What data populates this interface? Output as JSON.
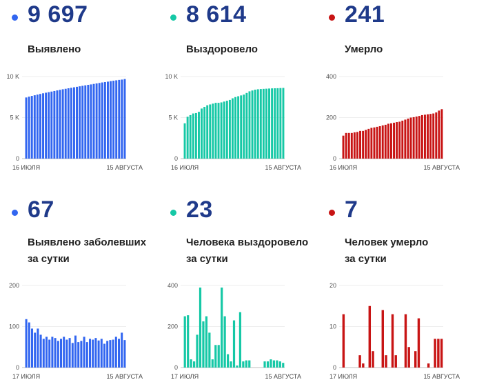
{
  "panels": [
    {
      "value": "9 697",
      "label_lines": [
        "Выявлено"
      ],
      "color": "#3266f0"
    },
    {
      "value": "8 614",
      "label_lines": [
        "Выздоровело"
      ],
      "color": "#16c8a6"
    },
    {
      "value": "241",
      "label_lines": [
        "Умерло"
      ],
      "color": "#c81414"
    },
    {
      "value": "67",
      "label_lines": [
        "Выявлено заболевших",
        "за сутки"
      ],
      "color": "#3266f0"
    },
    {
      "value": "23",
      "label_lines": [
        "Человека выздоровело",
        "за сутки"
      ],
      "color": "#16c8a6"
    },
    {
      "value": "7",
      "label_lines": [
        "Человек умерло",
        "за сутки"
      ],
      "color": "#c81414"
    }
  ],
  "chart_data": [
    {
      "type": "bar",
      "color": "#3266f0",
      "ylim": [
        0,
        10000
      ],
      "yticks": [
        {
          "v": 0,
          "label": "0"
        },
        {
          "v": 5000,
          "label": "5 K"
        },
        {
          "v": 10000,
          "label": "10 K"
        }
      ],
      "x_start_label": "16 ИЮЛЯ",
      "x_end_label": "15 АВГУСТА",
      "values": [
        7450,
        7550,
        7640,
        7720,
        7800,
        7880,
        7960,
        8030,
        8100,
        8170,
        8240,
        8310,
        8380,
        8450,
        8510,
        8570,
        8630,
        8690,
        8750,
        8810,
        8870,
        8930,
        8990,
        9040,
        9100,
        9160,
        9220,
        9280,
        9330,
        9380,
        9440,
        9490,
        9540,
        9590,
        9630,
        9697
      ]
    },
    {
      "type": "bar",
      "color": "#16c8a6",
      "ylim": [
        0,
        10000
      ],
      "yticks": [
        {
          "v": 0,
          "label": "0"
        },
        {
          "v": 5000,
          "label": "5 K"
        },
        {
          "v": 10000,
          "label": "10 K"
        }
      ],
      "x_start_label": "16 ИЮЛЯ",
      "x_end_label": "15 АВГУСТА",
      "values": [
        4300,
        5100,
        5300,
        5500,
        5550,
        5700,
        6100,
        6300,
        6500,
        6600,
        6700,
        6800,
        6800,
        6850,
        6950,
        7050,
        7150,
        7350,
        7500,
        7600,
        7700,
        7800,
        8000,
        8200,
        8300,
        8400,
        8450,
        8480,
        8500,
        8520,
        8540,
        8560,
        8570,
        8580,
        8600,
        8614
      ]
    },
    {
      "type": "bar",
      "color": "#c81414",
      "ylim": [
        0,
        400
      ],
      "yticks": [
        {
          "v": 0,
          "label": "0"
        },
        {
          "v": 200,
          "label": "200"
        },
        {
          "v": 400,
          "label": "400"
        }
      ],
      "x_start_label": "16 ИЮЛЯ",
      "x_end_label": "15 АВГУСТА",
      "values": [
        112,
        125,
        125,
        125,
        128,
        130,
        135,
        135,
        140,
        145,
        150,
        152,
        155,
        158,
        162,
        165,
        170,
        172,
        175,
        178,
        180,
        185,
        190,
        195,
        200,
        202,
        205,
        208,
        212,
        214,
        216,
        218,
        220,
        225,
        234,
        241
      ]
    },
    {
      "type": "bar",
      "color": "#3266f0",
      "ylim": [
        0,
        200
      ],
      "yticks": [
        {
          "v": 0,
          "label": "0"
        },
        {
          "v": 100,
          "label": "100"
        },
        {
          "v": 200,
          "label": "200"
        }
      ],
      "x_start_label": "17 ИЮЛЯ",
      "x_end_label": "15 АВГУСТА",
      "values": [
        118,
        110,
        95,
        85,
        95,
        80,
        70,
        75,
        68,
        75,
        72,
        65,
        70,
        75,
        68,
        72,
        60,
        78,
        62,
        65,
        75,
        62,
        70,
        68,
        72,
        66,
        70,
        58,
        65,
        67,
        68,
        75,
        70,
        85,
        67
      ]
    },
    {
      "type": "bar",
      "color": "#16c8a6",
      "ylim": [
        0,
        400
      ],
      "yticks": [
        {
          "v": 0,
          "label": "0"
        },
        {
          "v": 200,
          "label": "200"
        },
        {
          "v": 400,
          "label": "400"
        }
      ],
      "x_start_label": "17 ИЮЛЯ",
      "x_end_label": "15 АВГУСТА",
      "values": [
        250,
        255,
        40,
        30,
        160,
        390,
        225,
        250,
        170,
        40,
        110,
        110,
        390,
        250,
        65,
        30,
        230,
        10,
        270,
        30,
        35,
        35,
        0,
        0,
        0,
        0,
        30,
        30,
        40,
        35,
        35,
        30,
        23
      ]
    },
    {
      "type": "bar",
      "color": "#c81414",
      "ylim": [
        0,
        20
      ],
      "yticks": [
        {
          "v": 0,
          "label": "0"
        },
        {
          "v": 10,
          "label": "10"
        },
        {
          "v": 20,
          "label": "20"
        }
      ],
      "x_start_label": "17 ИЮЛЯ",
      "x_end_label": "15 АВГУСТА",
      "values": [
        13,
        0,
        0,
        0,
        0,
        3,
        1,
        0,
        15,
        4,
        0,
        0,
        14,
        3,
        0,
        13,
        3,
        0,
        0,
        13,
        5,
        0,
        4,
        12,
        0,
        0,
        1,
        0,
        7,
        7,
        7
      ]
    }
  ]
}
